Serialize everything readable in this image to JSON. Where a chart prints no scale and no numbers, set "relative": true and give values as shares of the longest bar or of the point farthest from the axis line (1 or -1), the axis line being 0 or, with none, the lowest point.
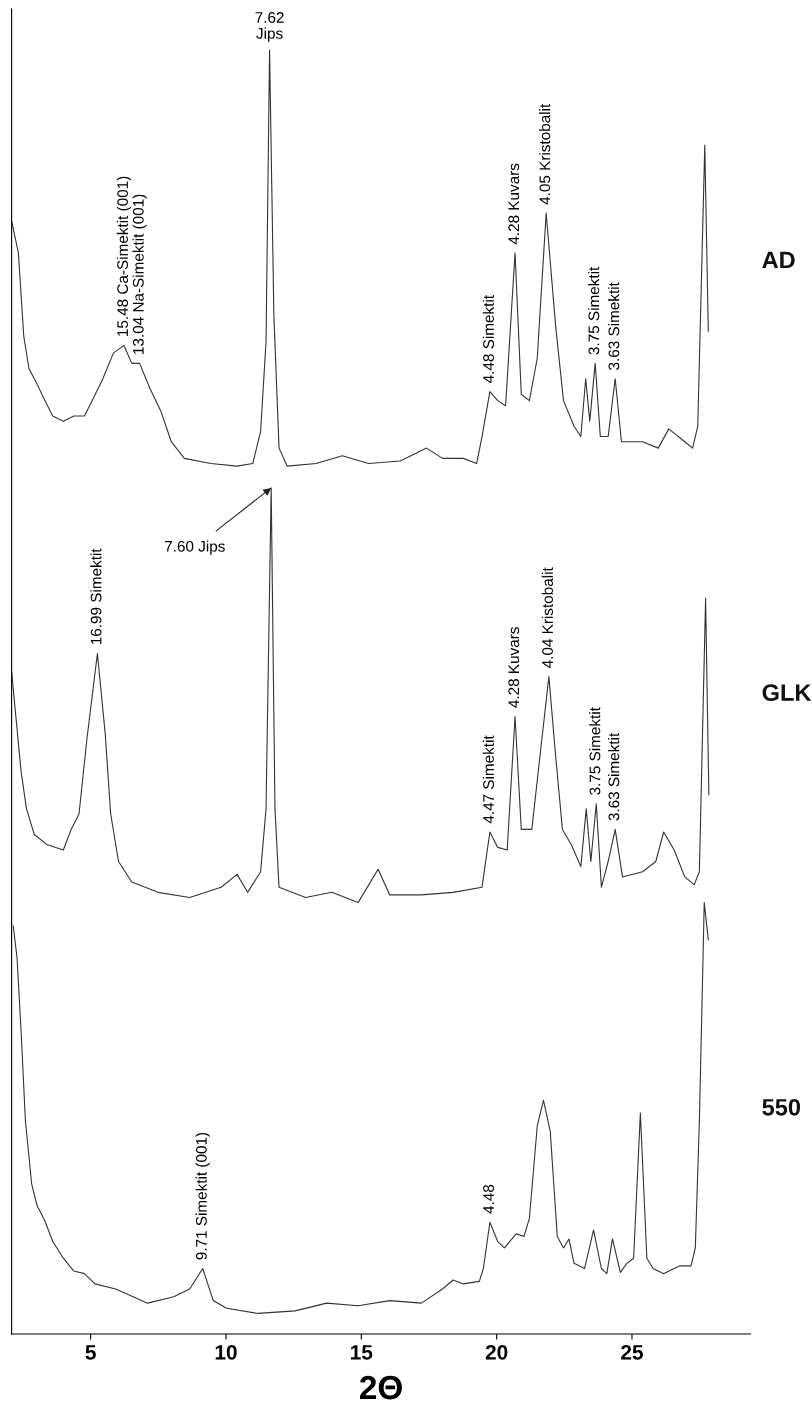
{
  "chart_data": {
    "type": "line",
    "relative": true,
    "xlabel": "2Θ",
    "xlim": [
      2.08,
      29.38
    ],
    "xticks": [
      5,
      10,
      15,
      20,
      25
    ],
    "series": [
      {
        "name": "AD",
        "color": "#333333",
        "x": [
          2.08,
          2.33,
          2.53,
          2.72,
          3.02,
          3.31,
          3.6,
          3.99,
          4.38,
          4.77,
          5.06,
          5.45,
          5.84,
          6.23,
          6.52,
          6.81,
          7.2,
          7.59,
          7.98,
          8.46,
          9.44,
          10.41,
          10.99,
          11.28,
          11.48,
          11.61,
          11.77,
          11.96,
          12.26,
          13.33,
          14.3,
          15.27,
          16.44,
          17.41,
          18.0,
          18.77,
          19.26,
          19.46,
          19.75,
          20.04,
          20.33,
          20.68,
          20.91,
          21.21,
          21.5,
          21.83,
          22.18,
          22.47,
          22.86,
          23.11,
          23.29,
          23.44,
          23.64,
          23.83,
          24.12,
          24.38,
          24.61,
          25.39,
          25.97,
          26.36,
          26.95,
          27.24,
          27.43,
          27.69,
          27.82
        ],
        "values": [
          0.867,
          0.842,
          0.777,
          0.752,
          0.74,
          0.727,
          0.715,
          0.711,
          0.715,
          0.715,
          0.727,
          0.744,
          0.764,
          0.77,
          0.756,
          0.756,
          0.736,
          0.719,
          0.695,
          0.682,
          0.678,
          0.676,
          0.678,
          0.703,
          0.773,
          1.0,
          0.793,
          0.69,
          0.676,
          0.678,
          0.684,
          0.678,
          0.68,
          0.69,
          0.682,
          0.682,
          0.678,
          0.699,
          0.734,
          0.727,
          0.723,
          0.842,
          0.732,
          0.727,
          0.76,
          0.873,
          0.785,
          0.727,
          0.707,
          0.699,
          0.744,
          0.711,
          0.756,
          0.699,
          0.699,
          0.744,
          0.695,
          0.695,
          0.69,
          0.705,
          0.695,
          0.69,
          0.707,
          0.926,
          0.781
        ]
      },
      {
        "name": "GLK",
        "color": "#333333",
        "x": [
          2.08,
          2.43,
          2.63,
          2.92,
          3.4,
          3.99,
          4.28,
          4.57,
          4.86,
          5.25,
          5.54,
          5.74,
          6.03,
          6.52,
          7.49,
          8.66,
          9.82,
          10.41,
          10.8,
          11.28,
          11.48,
          11.67,
          11.81,
          11.96,
          12.94,
          13.91,
          14.88,
          15.62,
          16.05,
          17.22,
          18.39,
          19.46,
          19.75,
          20.04,
          20.39,
          20.68,
          20.91,
          21.3,
          21.6,
          21.93,
          22.18,
          22.43,
          22.76,
          23.11,
          23.31,
          23.48,
          23.68,
          23.87,
          24.12,
          24.38,
          24.65,
          25.39,
          25.88,
          26.17,
          26.56,
          26.95,
          27.3,
          27.49,
          27.72,
          27.84
        ],
        "values": [
          0.516,
          0.438,
          0.409,
          0.389,
          0.381,
          0.377,
          0.393,
          0.405,
          0.463,
          0.53,
          0.467,
          0.405,
          0.368,
          0.352,
          0.344,
          0.34,
          0.348,
          0.358,
          0.344,
          0.36,
          0.409,
          0.659,
          0.409,
          0.348,
          0.34,
          0.344,
          0.336,
          0.362,
          0.342,
          0.342,
          0.344,
          0.348,
          0.391,
          0.379,
          0.377,
          0.481,
          0.393,
          0.393,
          0.45,
          0.512,
          0.45,
          0.393,
          0.381,
          0.364,
          0.409,
          0.368,
          0.413,
          0.348,
          0.368,
          0.393,
          0.356,
          0.36,
          0.368,
          0.391,
          0.377,
          0.356,
          0.35,
          0.36,
          0.573,
          0.42
        ]
      },
      {
        "name": "550",
        "color": "#333333",
        "x": [
          2.14,
          2.28,
          2.43,
          2.59,
          2.82,
          3.02,
          3.31,
          3.6,
          3.99,
          4.38,
          4.77,
          5.16,
          5.93,
          7.1,
          8.07,
          8.66,
          9.14,
          9.53,
          10.02,
          11.19,
          12.55,
          13.72,
          14.88,
          16.05,
          17.22,
          18.0,
          18.39,
          18.77,
          19.36,
          19.51,
          19.75,
          20.04,
          20.29,
          20.72,
          21.01,
          21.21,
          21.5,
          21.73,
          21.98,
          22.24,
          22.47,
          22.67,
          22.86,
          23.25,
          23.58,
          23.87,
          24.07,
          24.28,
          24.57,
          24.81,
          25.06,
          25.31,
          25.55,
          25.78,
          26.17,
          26.75,
          27.18,
          27.34,
          27.49,
          27.67,
          27.82
        ],
        "values": [
          0.318,
          0.293,
          0.236,
          0.166,
          0.117,
          0.1,
          0.088,
          0.072,
          0.059,
          0.049,
          0.047,
          0.039,
          0.035,
          0.024,
          0.029,
          0.035,
          0.051,
          0.026,
          0.02,
          0.016,
          0.018,
          0.024,
          0.022,
          0.026,
          0.024,
          0.035,
          0.042,
          0.039,
          0.041,
          0.051,
          0.087,
          0.072,
          0.067,
          0.078,
          0.076,
          0.09,
          0.162,
          0.182,
          0.158,
          0.076,
          0.067,
          0.074,
          0.055,
          0.051,
          0.081,
          0.051,
          0.047,
          0.074,
          0.048,
          0.055,
          0.059,
          0.172,
          0.059,
          0.051,
          0.047,
          0.053,
          0.053,
          0.067,
          0.166,
          0.336,
          0.307
        ]
      }
    ],
    "annotations": [
      {
        "text": "7.62\nJips",
        "x": 11.61,
        "y": 1.0
      },
      {
        "text": "15.48 Ca-Simektit (001)",
        "x": 6.23,
        "y": 0.77
      },
      {
        "text": "13.04 Na-Simektit (001)",
        "x": 6.81,
        "y": 0.756
      },
      {
        "text": "4.48 Simektit",
        "x": 19.75,
        "y": 0.734
      },
      {
        "text": "4.28 Kuvars",
        "x": 20.68,
        "y": 0.842
      },
      {
        "text": "4.05 Kristobalit",
        "x": 21.83,
        "y": 0.873
      },
      {
        "text": "3.75 Simektit",
        "x": 23.64,
        "y": 0.756
      },
      {
        "text": "3.63 Simektit",
        "x": 24.38,
        "y": 0.744
      },
      {
        "text": "7.60 Jips",
        "x": 11.67,
        "y": 0.659
      },
      {
        "text": "16.99 Simektit",
        "x": 5.25,
        "y": 0.53
      },
      {
        "text": "4.47 Simektit",
        "x": 19.75,
        "y": 0.391
      },
      {
        "text": "4.28 Kuvars",
        "x": 20.68,
        "y": 0.481
      },
      {
        "text": "4.04 Kristobalit",
        "x": 21.93,
        "y": 0.512
      },
      {
        "text": "3.75 Simektit",
        "x": 23.68,
        "y": 0.413
      },
      {
        "text": "3.63 Simektit",
        "x": 24.38,
        "y": 0.393
      },
      {
        "text": "9.71 Simektit (001)",
        "x": 9.14,
        "y": 0.051
      },
      {
        "text": "4.48",
        "x": 19.75,
        "y": 0.087
      }
    ]
  }
}
